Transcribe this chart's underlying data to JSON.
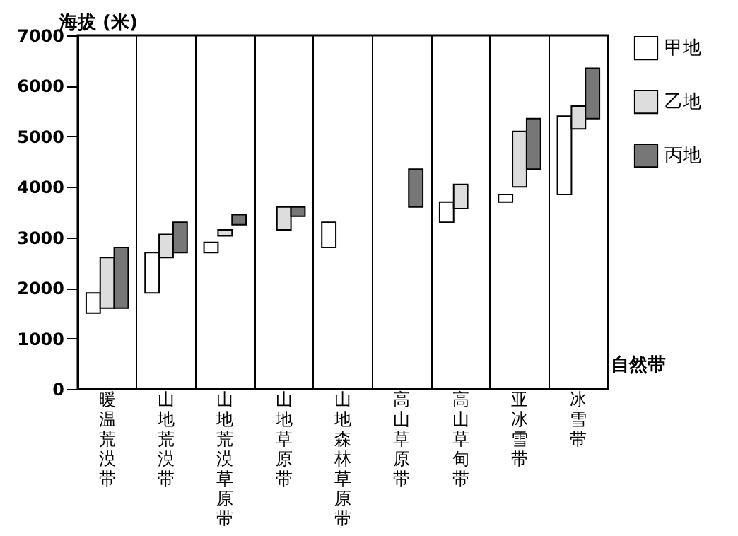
{
  "chart_data": {
    "type": "bar",
    "ylabel": "海拔 (米)",
    "xlabel": "自然带",
    "categories": [
      "暖温荒漠带",
      "山地荒漠带",
      "山地荒漠草原带",
      "山地草原带",
      "山地森林草原带",
      "高山草原带",
      "高山草甸带",
      "亚冰雪带",
      "冰雪带"
    ],
    "series": [
      {
        "name": "甲地",
        "color": "#ffffff",
        "base": [
          1500,
          1900,
          2700,
          null,
          2800,
          null,
          3300,
          3700,
          3850
        ],
        "values": [
          400,
          800,
          200,
          null,
          500,
          null,
          400,
          150,
          1550
        ]
      },
      {
        "name": "乙地",
        "color": "#dddddd",
        "base": [
          1600,
          2600,
          3030,
          3150,
          null,
          null,
          3570,
          4000,
          5150
        ],
        "values": [
          1000,
          460,
          120,
          450,
          null,
          null,
          480,
          1100,
          450
        ]
      },
      {
        "name": "丙地",
        "color": "#777777",
        "base": [
          1600,
          2700,
          3250,
          3420,
          null,
          3600,
          null,
          4350,
          5350
        ],
        "values": [
          1200,
          600,
          200,
          180,
          null,
          750,
          null,
          1000,
          1000
        ]
      }
    ],
    "ylim": [
      0,
      7000
    ],
    "yticks": [
      0,
      1000,
      2000,
      3000,
      4000,
      5000,
      6000,
      7000
    ],
    "grid": "x",
    "legend": "right"
  }
}
